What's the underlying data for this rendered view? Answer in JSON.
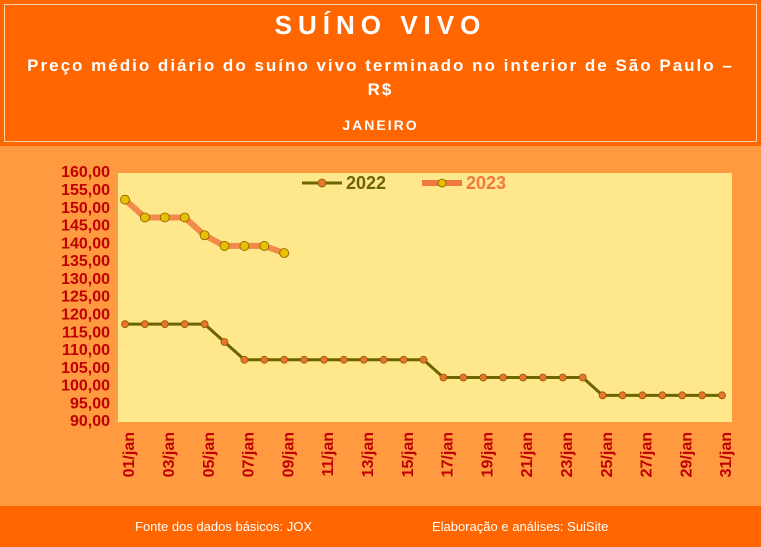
{
  "chart_data": {
    "type": "line",
    "title": "SUÍNO VIVO",
    "subtitle": "Preço médio diário do suíno vivo terminado no interior de São Paulo – R$",
    "period": "JANEIRO",
    "source": "Fonte dos dados básicos: JOX",
    "credit": "Elaboração e análises: SuiSite",
    "categories": [
      "01/jan",
      null,
      "03/jan",
      null,
      "05/jan",
      null,
      "07/jan",
      null,
      "09/jan",
      null,
      "11/jan",
      null,
      "13/jan",
      null,
      "15/jan",
      null,
      "17/jan",
      null,
      "19/jan",
      null,
      "21/jan",
      null,
      "23/jan",
      null,
      "25/jan",
      null,
      "27/jan",
      null,
      "29/jan",
      null,
      "31/jan"
    ],
    "series": [
      {
        "name": "2022",
        "color": "#6b6400",
        "marker_color": "#e8752a",
        "values": [
          117.5,
          117.5,
          117.5,
          117.5,
          117.5,
          112.5,
          107.5,
          107.5,
          107.5,
          107.5,
          107.5,
          107.5,
          107.5,
          107.5,
          107.5,
          107.5,
          102.5,
          102.5,
          102.5,
          102.5,
          102.5,
          102.5,
          102.5,
          102.5,
          97.5,
          97.5,
          97.5,
          97.5,
          97.5,
          97.5,
          97.5
        ]
      },
      {
        "name": "2023",
        "color": "#f07a3c",
        "marker_color": "#e8c000",
        "values": [
          152.5,
          147.5,
          147.5,
          147.5,
          142.5,
          139.5,
          139.5,
          139.5,
          137.5,
          null,
          null,
          null,
          null,
          null,
          null,
          null,
          null,
          null,
          null,
          null,
          null,
          null,
          null,
          null,
          null,
          null,
          null,
          null,
          null,
          null,
          null
        ]
      }
    ],
    "ylim": [
      90,
      160
    ],
    "yticks": [
      {
        "value": 90,
        "label": "90,00"
      },
      {
        "value": 95,
        "label": "95,00"
      },
      {
        "value": 100,
        "label": "100,00"
      },
      {
        "value": 105,
        "label": "105,00"
      },
      {
        "value": 110,
        "label": "110,00"
      },
      {
        "value": 115,
        "label": "115,00"
      },
      {
        "value": 120,
        "label": "120,00"
      },
      {
        "value": 125,
        "label": "125,00"
      },
      {
        "value": 130,
        "label": "130,00"
      },
      {
        "value": 135,
        "label": "135,00"
      },
      {
        "value": 140,
        "label": "140,00"
      },
      {
        "value": 145,
        "label": "145,00"
      },
      {
        "value": 150,
        "label": "150,00"
      },
      {
        "value": 155,
        "label": "155,00"
      },
      {
        "value": 160,
        "label": "160,00"
      }
    ],
    "grid": false
  }
}
